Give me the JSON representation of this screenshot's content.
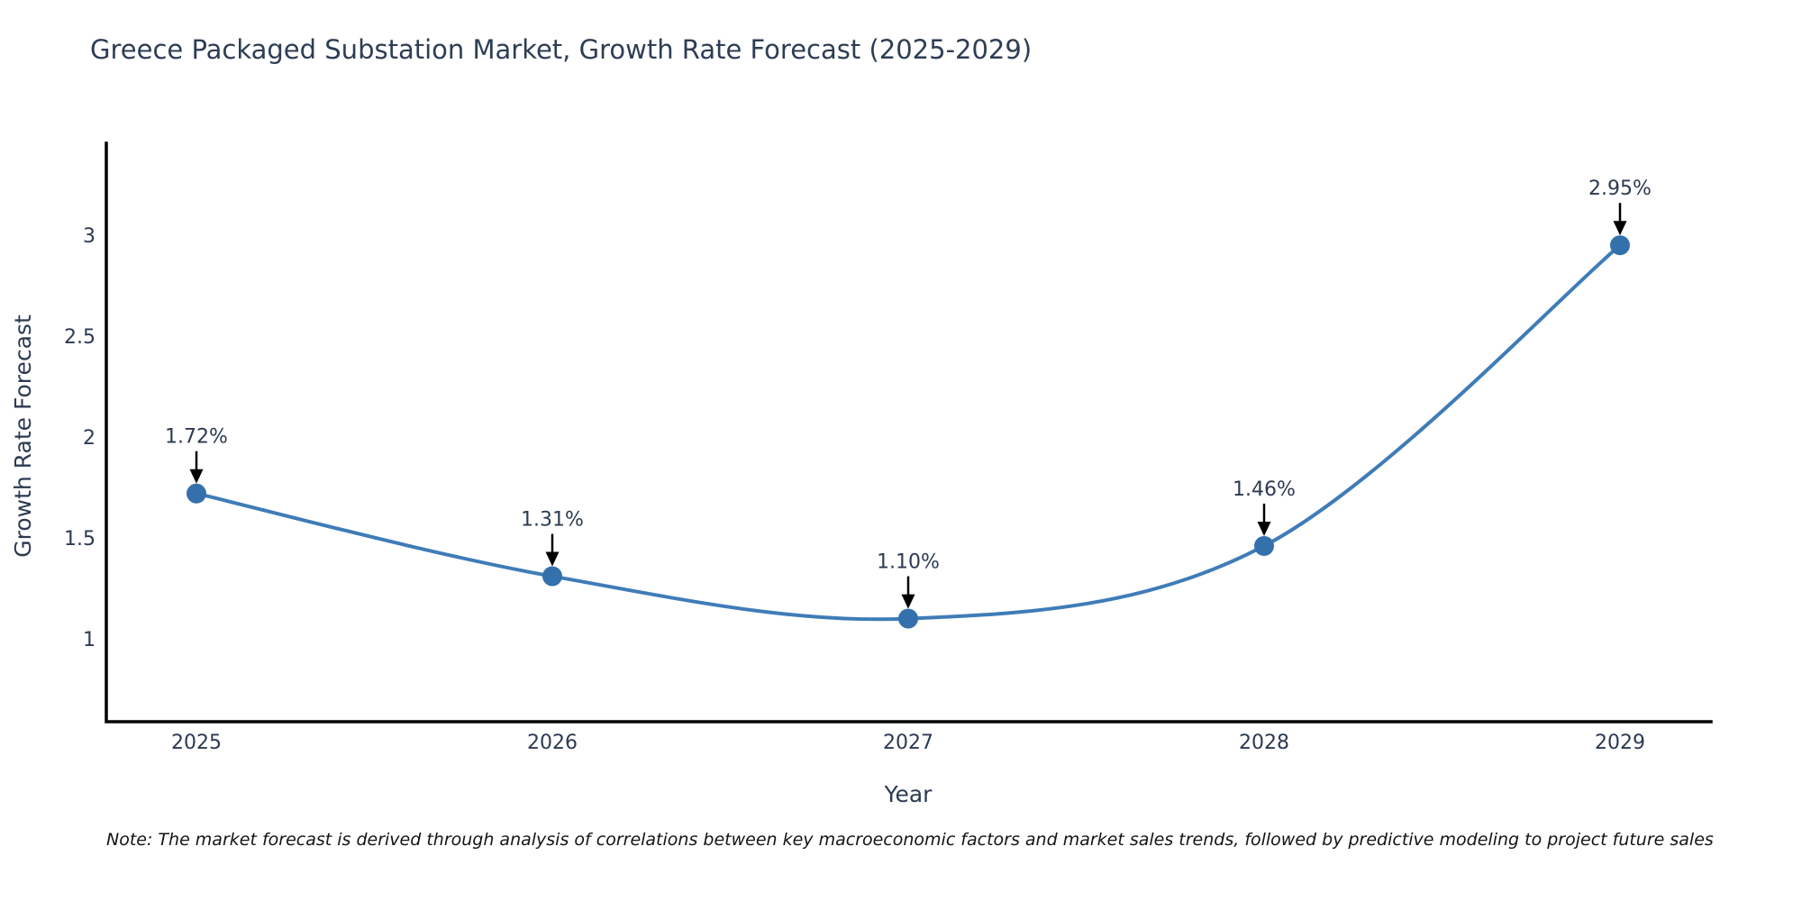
{
  "chart_data": {
    "type": "line",
    "title": "Greece Packaged Substation Market, Growth Rate Forecast (2025-2029)",
    "xlabel": "Year",
    "ylabel": "Growth Rate Forecast",
    "x": [
      2025,
      2026,
      2027,
      2028,
      2029
    ],
    "series": [
      {
        "name": "Growth Rate Forecast",
        "values": [
          1.72,
          1.31,
          1.1,
          1.46,
          2.95
        ]
      }
    ],
    "point_labels": [
      "1.72%",
      "1.31%",
      "1.10%",
      "1.46%",
      "2.95%"
    ],
    "yticks": [
      "1",
      "1.5",
      "2",
      "2.5",
      "3"
    ],
    "ylim": [
      0.59,
      3.46
    ],
    "xlim": [
      2024.75,
      2029.26
    ],
    "grid": false,
    "legend": "none",
    "curve": "smooth-spline",
    "annotation_style": "value-label-with-down-arrow",
    "colors": {
      "line": "#3f7cb8",
      "marker": "#3470ab",
      "arrow": "#000000",
      "axis": "#000000",
      "tick_text": "#2c3a52",
      "title_text": "#2d3e54",
      "note_text": "#141414"
    },
    "note": "Note: The market forecast is derived through analysis of correlations between key macroeconomic factors and market sales trends, followed by predictive modeling to project future sales"
  }
}
